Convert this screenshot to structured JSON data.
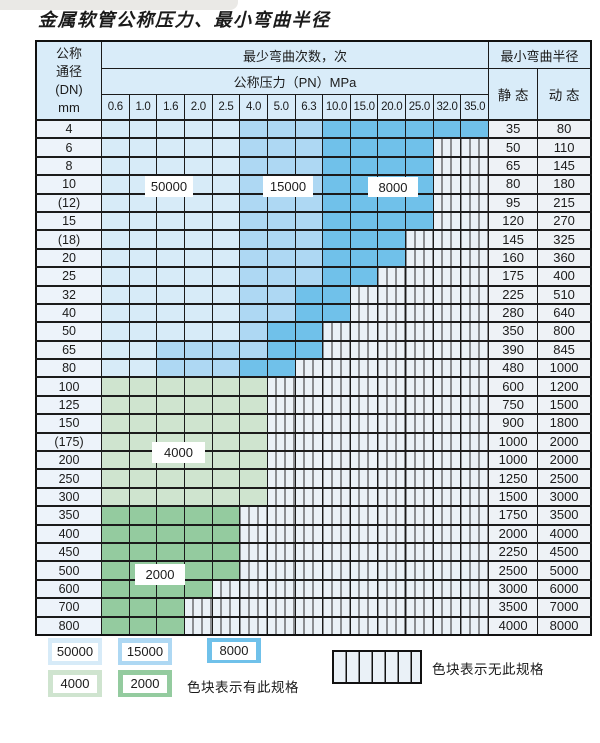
{
  "title": "金属软管公称压力、最小弯曲半径",
  "header": {
    "dn_lines": [
      "公称",
      "通径",
      "(DN)",
      "mm"
    ],
    "cycles_label": "最少弯曲次数，次",
    "pressure_label": "公称压力（PN）MPa",
    "radius_label": "最小弯曲半径",
    "static_label": "静 态",
    "dynamic_label": "动 态",
    "pressures": [
      "0.6",
      "1.0",
      "1.6",
      "2.0",
      "2.5",
      "4.0",
      "5.0",
      "6.3",
      "10.0",
      "15.0",
      "20.0",
      "25.0",
      "32.0",
      "35.0"
    ]
  },
  "colors": {
    "c50000": "#d7ebf8",
    "c15000": "#aed8f3",
    "c8000": "#70c1ea",
    "c4000": "#cfe4cf",
    "c2000": "#94cb9f",
    "stripebg": "#eaf1f7",
    "headerbg": "#d9ecf9",
    "dnbg": "#edf3fa",
    "valbg": "#eef2f6",
    "line": "#1b1b1b"
  },
  "table": {
    "cell_legend": "L=50000 cycles, M=15000, D=8000, F=4000, T=2000, S=no spec (striped)",
    "rows": [
      {
        "dn": "4",
        "cells": "LLLLLMMMDDDDDD",
        "static": "35",
        "dynamic": "80"
      },
      {
        "dn": "6",
        "cells": "LLLLLMMMDDDDSS",
        "static": "50",
        "dynamic": "110"
      },
      {
        "dn": "8",
        "cells": "LLLLLMMMDDDDSS",
        "static": "65",
        "dynamic": "145"
      },
      {
        "dn": "10",
        "cells": "LLLLLMMMDDDDSS",
        "static": "80",
        "dynamic": "180"
      },
      {
        "dn": "(12)",
        "cells": "LLLLLMMMDDDDSS",
        "static": "95",
        "dynamic": "215"
      },
      {
        "dn": "15",
        "cells": "LLLLLMMMDDDDSS",
        "static": "120",
        "dynamic": "270"
      },
      {
        "dn": "(18)",
        "cells": "LLLLLMMMDDDSSS",
        "static": "145",
        "dynamic": "325"
      },
      {
        "dn": "20",
        "cells": "LLLLLMMMDDDSSS",
        "static": "160",
        "dynamic": "360"
      },
      {
        "dn": "25",
        "cells": "LLLLLMMMDDSSSS",
        "static": "175",
        "dynamic": "400"
      },
      {
        "dn": "32",
        "cells": "LLLLLMMDDSSSSS",
        "static": "225",
        "dynamic": "510"
      },
      {
        "dn": "40",
        "cells": "LLLLLMMDDSSSSS",
        "static": "280",
        "dynamic": "640"
      },
      {
        "dn": "50",
        "cells": "LLLLLMDDSSSSSS",
        "static": "350",
        "dynamic": "800"
      },
      {
        "dn": "65",
        "cells": "LLMMMMDDSSSSSS",
        "static": "390",
        "dynamic": "845"
      },
      {
        "dn": "80",
        "cells": "LLMMMDDSSSSSSS",
        "static": "480",
        "dynamic": "1000"
      },
      {
        "dn": "100",
        "cells": "FFFFFFSSSSSSSS",
        "static": "600",
        "dynamic": "1200"
      },
      {
        "dn": "125",
        "cells": "FFFFFFSSSSSSSS",
        "static": "750",
        "dynamic": "1500"
      },
      {
        "dn": "150",
        "cells": "FFFFFFSSSSSSSS",
        "static": "900",
        "dynamic": "1800"
      },
      {
        "dn": "(175)",
        "cells": "FFFFFFSSSSSSSS",
        "static": "1000",
        "dynamic": "2000"
      },
      {
        "dn": "200",
        "cells": "FFFFFFSSSSSSSS",
        "static": "1000",
        "dynamic": "2000"
      },
      {
        "dn": "250",
        "cells": "FFFFFFSSSSSSSS",
        "static": "1250",
        "dynamic": "2500"
      },
      {
        "dn": "300",
        "cells": "FFFFFFSSSSSSSS",
        "static": "1500",
        "dynamic": "3000"
      },
      {
        "dn": "350",
        "cells": "TTTTTSSSSSSSSS",
        "static": "1750",
        "dynamic": "3500"
      },
      {
        "dn": "400",
        "cells": "TTTTTSSSSSSSSS",
        "static": "2000",
        "dynamic": "4000"
      },
      {
        "dn": "450",
        "cells": "TTTTTSSSSSSSSS",
        "static": "2250",
        "dynamic": "4500"
      },
      {
        "dn": "500",
        "cells": "TTTTTSSSSSSSSS",
        "static": "2500",
        "dynamic": "5000"
      },
      {
        "dn": "600",
        "cells": "TTTTSSSSSSSSSS",
        "static": "3000",
        "dynamic": "6000"
      },
      {
        "dn": "700",
        "cells": "TTTSSSSSSSSSSS",
        "static": "3500",
        "dynamic": "7000"
      },
      {
        "dn": "800",
        "cells": "TTTSSSSSSSSSSS",
        "static": "4000",
        "dynamic": "8000"
      }
    ]
  },
  "overlays": [
    {
      "text": "50000"
    },
    {
      "text": "15000"
    },
    {
      "text": "8000"
    },
    {
      "text": "4000"
    },
    {
      "text": "2000"
    }
  ],
  "legend": {
    "items": [
      {
        "label": "50000",
        "key": "c50000"
      },
      {
        "label": "15000",
        "key": "c15000"
      },
      {
        "label": "8000",
        "key": "c8000"
      },
      {
        "label": "4000",
        "key": "c4000"
      },
      {
        "label": "2000",
        "key": "c2000"
      }
    ],
    "has_spec_text": "色块表示有此规格",
    "no_spec_text": "色块表示无此规格"
  }
}
